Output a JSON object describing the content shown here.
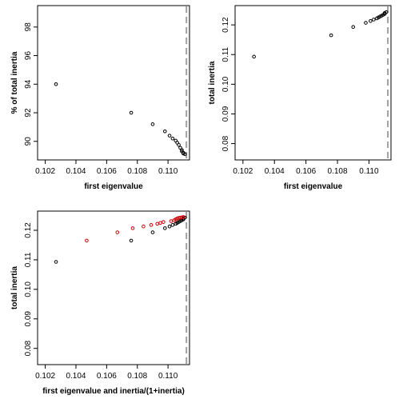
{
  "chart_data": [
    {
      "type": "scatter",
      "xlabel": "first eigenvalue",
      "ylabel": "% of total inertia",
      "xlim": [
        0.1015,
        0.1114
      ],
      "ylim": [
        88.7,
        99.5
      ],
      "xticks": [
        "0.102",
        "0.104",
        "0.106",
        "0.108",
        "0.110"
      ],
      "yticks": [
        "90",
        "92",
        "94",
        "96",
        "98"
      ],
      "reference_line": {
        "x": 0.1112,
        "style": "dashed",
        "color": "#a0a0a0"
      },
      "series": [
        {
          "color": "#000000",
          "x": [
            0.1027,
            0.1076,
            0.109,
            0.1098,
            0.1101,
            0.1103,
            0.1105,
            0.1106,
            0.1107,
            0.1108,
            0.1109,
            0.1109,
            0.111,
            0.111,
            0.1111
          ],
          "y": [
            94.0,
            92.0,
            91.2,
            90.7,
            90.4,
            90.2,
            90.05,
            89.9,
            89.75,
            89.55,
            89.4,
            89.3,
            89.2,
            89.15,
            89.1
          ]
        }
      ]
    },
    {
      "type": "scatter",
      "xlabel": "first eigenvalue",
      "ylabel": "total inertia",
      "xlim": [
        0.1015,
        0.1114
      ],
      "ylim": [
        0.0745,
        0.1265
      ],
      "xticks": [
        "0.102",
        "0.104",
        "0.106",
        "0.108",
        "0.110"
      ],
      "yticks": [
        "0.08",
        "0.09",
        "0.10",
        "0.11",
        "0.12"
      ],
      "reference_line": {
        "x": 0.1112,
        "style": "dashed",
        "color": "#a0a0a0"
      },
      "series": [
        {
          "color": "#000000",
          "x": [
            0.1027,
            0.1076,
            0.109,
            0.1098,
            0.1101,
            0.1103,
            0.1105,
            0.1106,
            0.1107,
            0.1108,
            0.1109,
            0.111,
            0.111,
            0.1111
          ],
          "y": [
            0.1093,
            0.1165,
            0.1193,
            0.1207,
            0.1213,
            0.1218,
            0.1222,
            0.1225,
            0.1228,
            0.1231,
            0.1234,
            0.1237,
            0.124,
            0.1243
          ]
        }
      ]
    },
    {
      "type": "scatter",
      "xlabel": "first eigenvalue and inertia/(1+inertia)",
      "ylabel": "total inertia",
      "xlim": [
        0.1015,
        0.1114
      ],
      "ylim": [
        0.0745,
        0.1265
      ],
      "xticks": [
        "0.102",
        "0.104",
        "0.106",
        "0.108",
        "0.110"
      ],
      "yticks": [
        "0.08",
        "0.09",
        "0.10",
        "0.11",
        "0.12"
      ],
      "reference_line": {
        "x": 0.1112,
        "style": "dashed",
        "color": "#a0a0a0"
      },
      "series": [
        {
          "color": "#000000",
          "x": [
            0.1027,
            0.1076,
            0.109,
            0.1098,
            0.1101,
            0.1103,
            0.1105,
            0.1106,
            0.1107,
            0.1108,
            0.1109,
            0.111,
            0.111,
            0.1111
          ],
          "y": [
            0.1093,
            0.1165,
            0.1193,
            0.1207,
            0.1213,
            0.1218,
            0.1222,
            0.1225,
            0.1228,
            0.1231,
            0.1234,
            0.1237,
            0.124,
            0.1243
          ]
        },
        {
          "color": "#cc0000",
          "x": [
            0.1047,
            0.1067,
            0.1077,
            0.1084,
            0.1089,
            0.1093,
            0.1095,
            0.1097,
            0.1102,
            0.1104,
            0.1105,
            0.1106,
            0.1107,
            0.1108,
            0.1109,
            0.111
          ],
          "y": [
            0.1165,
            0.1193,
            0.1207,
            0.1213,
            0.1218,
            0.1222,
            0.1225,
            0.1228,
            0.1231,
            0.1234,
            0.1237,
            0.124,
            0.1242,
            0.1243,
            0.1244,
            0.1245
          ]
        }
      ]
    }
  ]
}
